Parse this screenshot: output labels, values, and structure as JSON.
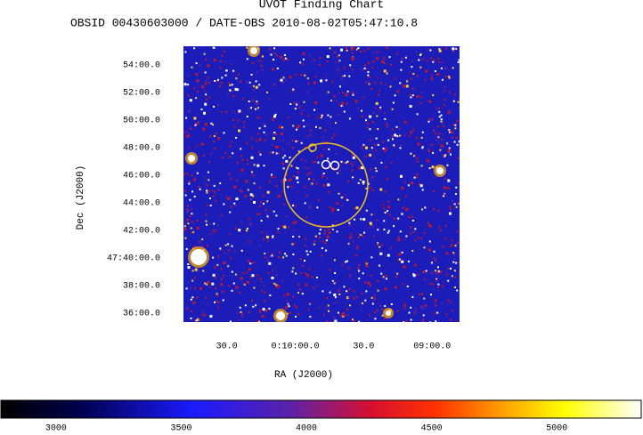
{
  "chart_data": {
    "type": "image",
    "title": "UVOT Finding Chart",
    "subtitle": "OBSID 00430603000 / DATE-OBS 2010-08-02T05:47:10.8",
    "xlabel": "RA (J2000)",
    "ylabel": "Dec (J2000)",
    "xlim": [
      649,
      528
    ],
    "xticks": [
      {
        "value": 630,
        "label": "30.0"
      },
      {
        "value": 600,
        "label": "0:10:00.0"
      },
      {
        "value": 570,
        "label": "30.0"
      },
      {
        "value": 540,
        "label": "09:00.0"
      }
    ],
    "ylim": [
      35.35,
      55.35
    ],
    "yticks": [
      {
        "value": 54,
        "label": "54:00.0"
      },
      {
        "value": 52,
        "label": "52:00.0"
      },
      {
        "value": 50,
        "label": "50:00.0"
      },
      {
        "value": 48,
        "label": "48:00.0"
      },
      {
        "value": 46,
        "label": "46:00.0"
      },
      {
        "value": 44,
        "label": "44:00.0"
      },
      {
        "value": 42,
        "label": "42:00.0"
      },
      {
        "value": 40,
        "label": "47:40:00.0"
      },
      {
        "value": 38,
        "label": "38:00.0"
      },
      {
        "value": 36,
        "label": "36:00.0"
      }
    ],
    "colorbar": {
      "lim": [
        2780,
        5337
      ],
      "ticks": [
        3000,
        3500,
        4000,
        4500,
        5000
      ]
    }
  }
}
